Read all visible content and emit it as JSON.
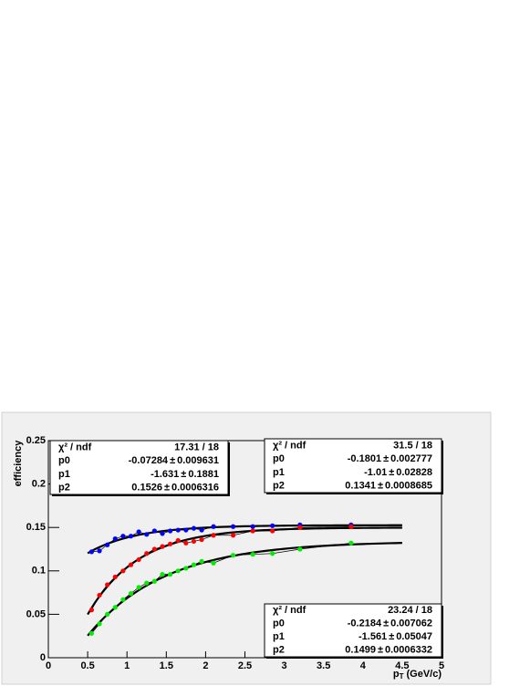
{
  "chart_data": {
    "type": "scatter",
    "y_label": "efficiency",
    "x_label": {
      "main": "p",
      "sub": "T",
      "rest": "(GeV/c)"
    },
    "xlim": [
      0,
      5
    ],
    "xticks": [
      0,
      0.5,
      1,
      1.5,
      2,
      2.5,
      3,
      3.5,
      4,
      4.5,
      5
    ],
    "ylim": [
      0,
      0.25
    ],
    "yticks": [
      0,
      0.05,
      0.1,
      0.15,
      0.2,
      0.25
    ],
    "fit_line_color": "#000000",
    "plus_minus": "±",
    "chi2_label": "χ² / ndf",
    "series": [
      {
        "color": "#0000ff",
        "x": [
          0.55,
          0.65,
          0.75,
          0.85,
          0.95,
          1.05,
          1.15,
          1.25,
          1.35,
          1.45,
          1.55,
          1.65,
          1.75,
          1.85,
          1.95,
          2.1,
          2.35,
          2.6,
          2.85,
          3.2,
          3.85
        ],
        "values": [
          0.122,
          0.123,
          0.13,
          0.137,
          0.14,
          0.14,
          0.145,
          0.142,
          0.146,
          0.143,
          0.146,
          0.147,
          0.147,
          0.149,
          0.147,
          0.151,
          0.151,
          0.151,
          0.152,
          0.153,
          0.153
        ],
        "fit_range": [
          0.5,
          4.5
        ],
        "fit": {
          "chi2_ndf": "17.31 / 18",
          "params": [
            {
              "name": "p0",
              "value": -0.07284,
              "error": 0.009631
            },
            {
              "name": "p1",
              "value": -1.631,
              "error": 0.1881
            },
            {
              "name": "p2",
              "value": 0.1526,
              "error": 0.0006316
            }
          ]
        }
      },
      {
        "color": "#ff0000",
        "x": [
          0.55,
          0.65,
          0.75,
          0.85,
          0.95,
          1.05,
          1.15,
          1.25,
          1.35,
          1.45,
          1.55,
          1.65,
          1.75,
          1.85,
          1.95,
          2.1,
          2.35,
          2.6,
          2.85,
          3.2,
          3.85
        ],
        "values": [
          0.055,
          0.072,
          0.084,
          0.093,
          0.1,
          0.107,
          0.113,
          0.12,
          0.125,
          0.128,
          0.131,
          0.135,
          0.132,
          0.134,
          0.136,
          0.141,
          0.141,
          0.146,
          0.146,
          0.15,
          0.151
        ],
        "fit_range": [
          0.5,
          4.5
        ],
        "fit": {
          "chi2_ndf": "23.24 / 18",
          "params": [
            {
              "name": "p0",
              "value": -0.2184,
              "error": 0.007062
            },
            {
              "name": "p1",
              "value": -1.561,
              "error": 0.05047
            },
            {
              "name": "p2",
              "value": 0.1499,
              "error": 0.0006332
            }
          ]
        }
      },
      {
        "color": "#00ee00",
        "x": [
          0.55,
          0.65,
          0.75,
          0.85,
          0.95,
          1.05,
          1.15,
          1.25,
          1.35,
          1.45,
          1.55,
          1.65,
          1.75,
          1.85,
          1.95,
          2.1,
          2.35,
          2.6,
          2.85,
          3.2,
          3.85
        ],
        "values": [
          0.028,
          0.039,
          0.05,
          0.058,
          0.067,
          0.074,
          0.081,
          0.086,
          0.088,
          0.096,
          0.096,
          0.1,
          0.103,
          0.107,
          0.111,
          0.109,
          0.118,
          0.119,
          0.12,
          0.125,
          0.132
        ],
        "fit_range": [
          0.5,
          4.5
        ],
        "fit": {
          "chi2_ndf": "31.5 / 18",
          "params": [
            {
              "name": "p0",
              "value": -0.1801,
              "error": 0.002777
            },
            {
              "name": "p1",
              "value": -1.01,
              "error": 0.02828
            },
            {
              "name": "p2",
              "value": 0.1341,
              "error": 0.0008685
            }
          ]
        }
      }
    ]
  }
}
